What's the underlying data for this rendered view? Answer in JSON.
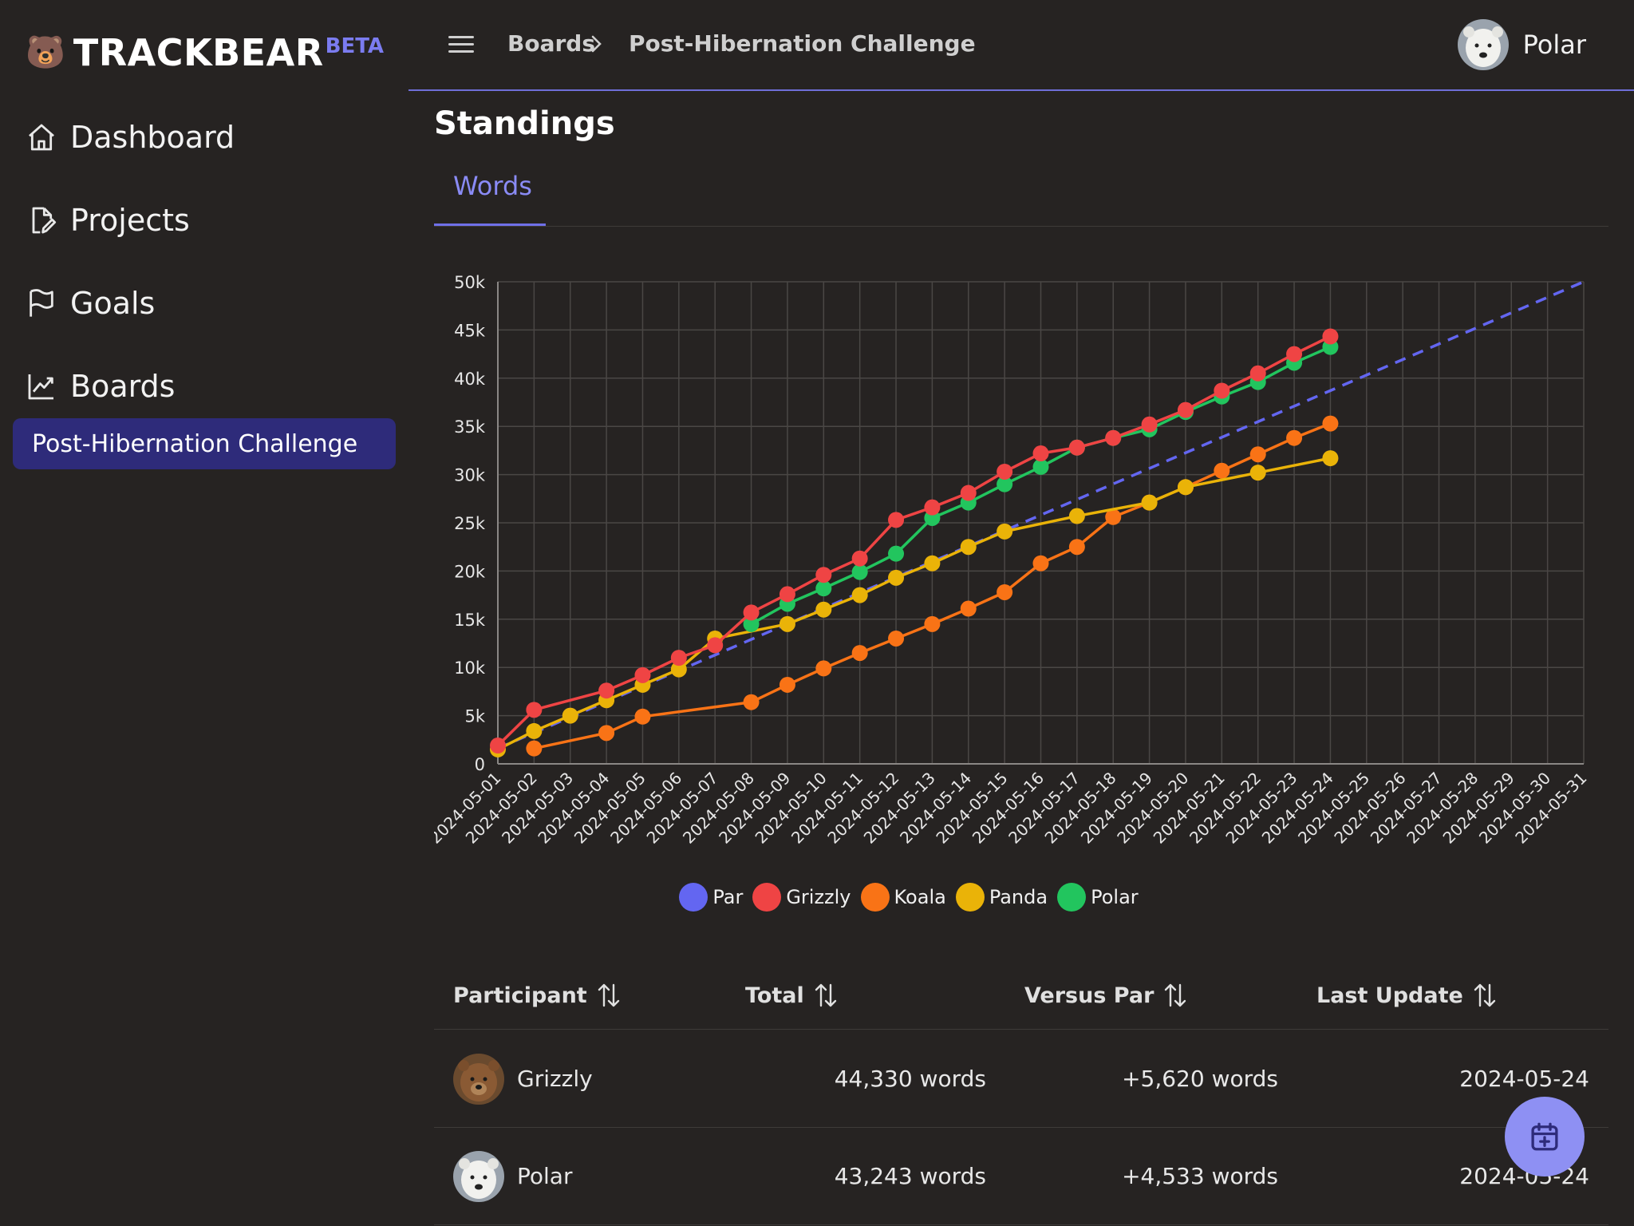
{
  "brand": {
    "emoji": "🐻",
    "name": "TRACKBEAR",
    "badge": "BETA"
  },
  "sidebar": {
    "items": [
      {
        "label": "Dashboard",
        "icon": "home-icon"
      },
      {
        "label": "Projects",
        "icon": "file-edit-icon"
      },
      {
        "label": "Goals",
        "icon": "flag-icon"
      },
      {
        "label": "Boards",
        "icon": "chart-line-icon"
      }
    ],
    "sub_item": "Post-Hibernation Challenge"
  },
  "topbar": {
    "breadcrumb": [
      "Boards",
      "Post-Hibernation Challenge"
    ],
    "user": "Polar"
  },
  "page": {
    "title": "Standings",
    "tab": "Words"
  },
  "chart_data": {
    "type": "line",
    "x": [
      "2024-05-01",
      "2024-05-02",
      "2024-05-03",
      "2024-05-04",
      "2024-05-05",
      "2024-05-06",
      "2024-05-07",
      "2024-05-08",
      "2024-05-09",
      "2024-05-10",
      "2024-05-11",
      "2024-05-12",
      "2024-05-13",
      "2024-05-14",
      "2024-05-15",
      "2024-05-16",
      "2024-05-17",
      "2024-05-18",
      "2024-05-19",
      "2024-05-20",
      "2024-05-21",
      "2024-05-22",
      "2024-05-23",
      "2024-05-24",
      "2024-05-25",
      "2024-05-26",
      "2024-05-27",
      "2024-05-28",
      "2024-05-29",
      "2024-05-30",
      "2024-05-31"
    ],
    "ylim": [
      0,
      50000
    ],
    "yticks": [
      0,
      5000,
      10000,
      15000,
      20000,
      25000,
      30000,
      35000,
      40000,
      45000,
      50000
    ],
    "ytick_labels": [
      "0",
      "5k",
      "10k",
      "15k",
      "20k",
      "25k",
      "30k",
      "35k",
      "40k",
      "45k",
      "50k"
    ],
    "grid": true,
    "legend_position": "bottom",
    "series": [
      {
        "name": "Par",
        "color": "#6366f1",
        "dashed": true,
        "markers": false,
        "points": [
          [
            "2024-05-01",
            1613
          ],
          [
            "2024-05-31",
            50000
          ]
        ]
      },
      {
        "name": "Grizzly",
        "color": "#ef4444",
        "points": [
          [
            "2024-05-01",
            1900
          ],
          [
            "2024-05-02",
            5600
          ],
          [
            "2024-05-04",
            7600
          ],
          [
            "2024-05-05",
            9200
          ],
          [
            "2024-05-06",
            11000
          ],
          [
            "2024-05-07",
            12300
          ],
          [
            "2024-05-08",
            15700
          ],
          [
            "2024-05-09",
            17600
          ],
          [
            "2024-05-10",
            19600
          ],
          [
            "2024-05-11",
            21300
          ],
          [
            "2024-05-12",
            25300
          ],
          [
            "2024-05-13",
            26600
          ],
          [
            "2024-05-14",
            28100
          ],
          [
            "2024-05-15",
            30300
          ],
          [
            "2024-05-16",
            32200
          ],
          [
            "2024-05-17",
            32800
          ],
          [
            "2024-05-18",
            33800
          ],
          [
            "2024-05-19",
            35200
          ],
          [
            "2024-05-20",
            36700
          ],
          [
            "2024-05-21",
            38700
          ],
          [
            "2024-05-22",
            40500
          ],
          [
            "2024-05-23",
            42500
          ],
          [
            "2024-05-24",
            44330
          ]
        ]
      },
      {
        "name": "Koala",
        "color": "#f97316",
        "points": [
          [
            "2024-05-02",
            1600
          ],
          [
            "2024-05-04",
            3200
          ],
          [
            "2024-05-05",
            4900
          ],
          [
            "2024-05-08",
            6400
          ],
          [
            "2024-05-09",
            8200
          ],
          [
            "2024-05-10",
            9900
          ],
          [
            "2024-05-11",
            11500
          ],
          [
            "2024-05-12",
            13000
          ],
          [
            "2024-05-13",
            14500
          ],
          [
            "2024-05-14",
            16100
          ],
          [
            "2024-05-15",
            17800
          ],
          [
            "2024-05-16",
            20800
          ],
          [
            "2024-05-17",
            22500
          ],
          [
            "2024-05-18",
            25600
          ],
          [
            "2024-05-19",
            27100
          ],
          [
            "2024-05-20",
            28700
          ],
          [
            "2024-05-21",
            30400
          ],
          [
            "2024-05-22",
            32100
          ],
          [
            "2024-05-23",
            33800
          ],
          [
            "2024-05-24",
            35300
          ]
        ]
      },
      {
        "name": "Panda",
        "color": "#eab308",
        "points": [
          [
            "2024-05-01",
            1500
          ],
          [
            "2024-05-02",
            3400
          ],
          [
            "2024-05-03",
            5000
          ],
          [
            "2024-05-04",
            6600
          ],
          [
            "2024-05-05",
            8200
          ],
          [
            "2024-05-06",
            9800
          ],
          [
            "2024-05-07",
            13000
          ],
          [
            "2024-05-09",
            14500
          ],
          [
            "2024-05-10",
            16000
          ],
          [
            "2024-05-11",
            17500
          ],
          [
            "2024-05-12",
            19300
          ],
          [
            "2024-05-13",
            20800
          ],
          [
            "2024-05-14",
            22500
          ],
          [
            "2024-05-15",
            24100
          ],
          [
            "2024-05-17",
            25700
          ],
          [
            "2024-05-19",
            27100
          ],
          [
            "2024-05-20",
            28700
          ],
          [
            "2024-05-22",
            30200
          ],
          [
            "2024-05-24",
            31700
          ]
        ]
      },
      {
        "name": "Polar",
        "color": "#22c55e",
        "points": [
          [
            "2024-05-08",
            14500
          ],
          [
            "2024-05-09",
            16600
          ],
          [
            "2024-05-10",
            18200
          ],
          [
            "2024-05-11",
            19900
          ],
          [
            "2024-05-12",
            21800
          ],
          [
            "2024-05-13",
            25500
          ],
          [
            "2024-05-14",
            27100
          ],
          [
            "2024-05-15",
            29000
          ],
          [
            "2024-05-16",
            30800
          ],
          [
            "2024-05-17",
            32800
          ],
          [
            "2024-05-18",
            33800
          ],
          [
            "2024-05-19",
            34700
          ],
          [
            "2024-05-20",
            36500
          ],
          [
            "2024-05-21",
            38100
          ],
          [
            "2024-05-22",
            39600
          ],
          [
            "2024-05-23",
            41600
          ],
          [
            "2024-05-24",
            43243
          ]
        ]
      }
    ]
  },
  "table": {
    "headers": [
      "Participant",
      "Total",
      "Versus Par",
      "Last Update"
    ],
    "rows": [
      {
        "participant": "Grizzly",
        "total": "44,330 words",
        "versus_par": "+5,620 words",
        "last_update": "2024-05-24"
      },
      {
        "participant": "Polar",
        "total": "43,243 words",
        "versus_par": "+4,533 words",
        "last_update": "2024-05-24"
      }
    ]
  },
  "fab": {
    "icon": "calendar-plus-icon"
  }
}
